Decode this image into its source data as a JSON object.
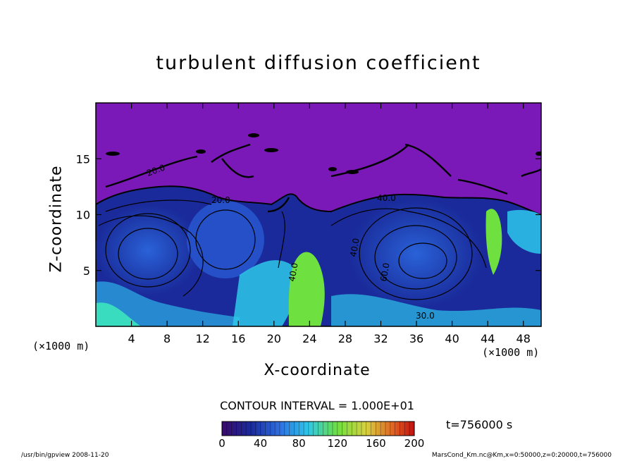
{
  "chart_data": {
    "type": "heatmap",
    "title": "turbulent diffusion coefficient",
    "xlabel": "X-coordinate",
    "ylabel": "Z-coordinate",
    "x_unit": "(×1000 m)",
    "y_unit": "(×1000 m)",
    "xlim": [
      0,
      50
    ],
    "ylim": [
      0,
      20
    ],
    "x_ticks": [
      4,
      8,
      12,
      16,
      20,
      24,
      28,
      32,
      36,
      40,
      44,
      48
    ],
    "y_ticks": [
      5,
      10,
      15
    ],
    "colorbar": {
      "min": 0,
      "max": 200,
      "ticks": [
        0,
        40,
        80,
        120,
        160,
        200
      ]
    },
    "contour_interval_label": "CONTOUR INTERVAL = 1.000E+01",
    "contour_labels": [
      "20.0",
      "40.0",
      "60.0",
      "30.0"
    ],
    "time_label": "t=756000 s",
    "colors": {
      "background_high": "#7a18b8",
      "low": "#1a2a9a",
      "mid": "#2f6fe0",
      "cyan": "#2ec8e8",
      "green": "#6ee040"
    }
  },
  "footer": {
    "left": "/usr/bin/gpview   2008-11-20",
    "right": "MarsCond_Km.nc@Km,x=0:50000,z=0:20000,t=756000"
  }
}
